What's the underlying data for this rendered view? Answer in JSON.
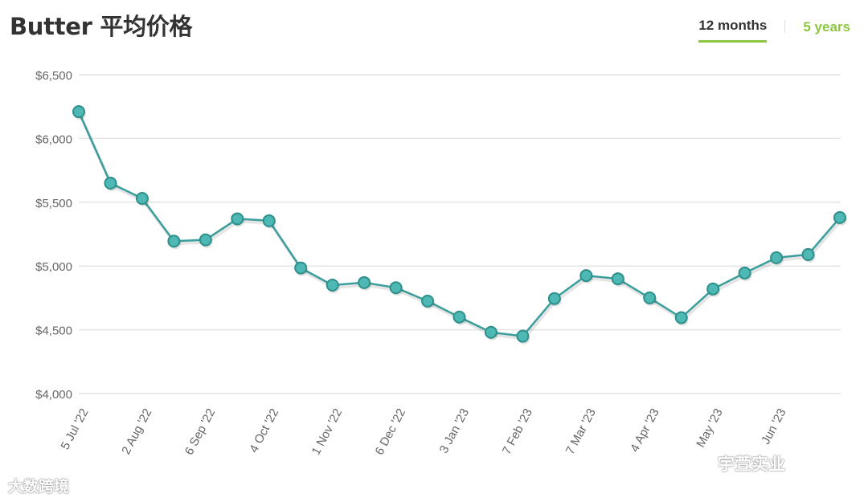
{
  "header": {
    "title": "Butter 平均价格",
    "tabs": [
      {
        "label": "12 months",
        "active": true
      },
      {
        "label": "5 years",
        "active": false
      }
    ]
  },
  "colors": {
    "line": "#3a9e9c",
    "marker_fill": "#4db8b4",
    "marker_stroke": "#2e8f8b",
    "grid": "#e4e4e4",
    "accent": "#8dc63f"
  },
  "chart_data": {
    "type": "line",
    "title": "Butter 平均价格",
    "xlabel": "",
    "ylabel": "",
    "ylim": [
      4000,
      6500
    ],
    "yticks": [
      4000,
      4500,
      5000,
      5500,
      6000,
      6500
    ],
    "ytick_labels": [
      "$4,000",
      "$4,500",
      "$5,000",
      "$5,500",
      "$6,000",
      "$6,500"
    ],
    "grid": true,
    "x_tick_labels": [
      "5 Jul '22",
      "2 Aug '22",
      "6 Sep '22",
      "4 Oct '22",
      "1 Nov '22",
      "6 Dec '22",
      "3 Jan '23",
      "7 Feb '23",
      "7 Mar '23",
      "4 Apr '23",
      "May '23",
      "Jun '23"
    ],
    "x_tick_indices": [
      0,
      2,
      4,
      6,
      8,
      10,
      12,
      14,
      16,
      18,
      20,
      22
    ],
    "series": [
      {
        "values": [
          6210,
          5650,
          5530,
          5195,
          5205,
          5370,
          5355,
          4985,
          4850,
          4870,
          4830,
          4725,
          4600,
          4480,
          4450,
          4745,
          4925,
          4900,
          4750,
          4595,
          4820,
          4945,
          5065,
          5090,
          5380
        ]
      }
    ]
  },
  "watermarks": {
    "left": "大数跨境",
    "right": "宇萱实业"
  }
}
